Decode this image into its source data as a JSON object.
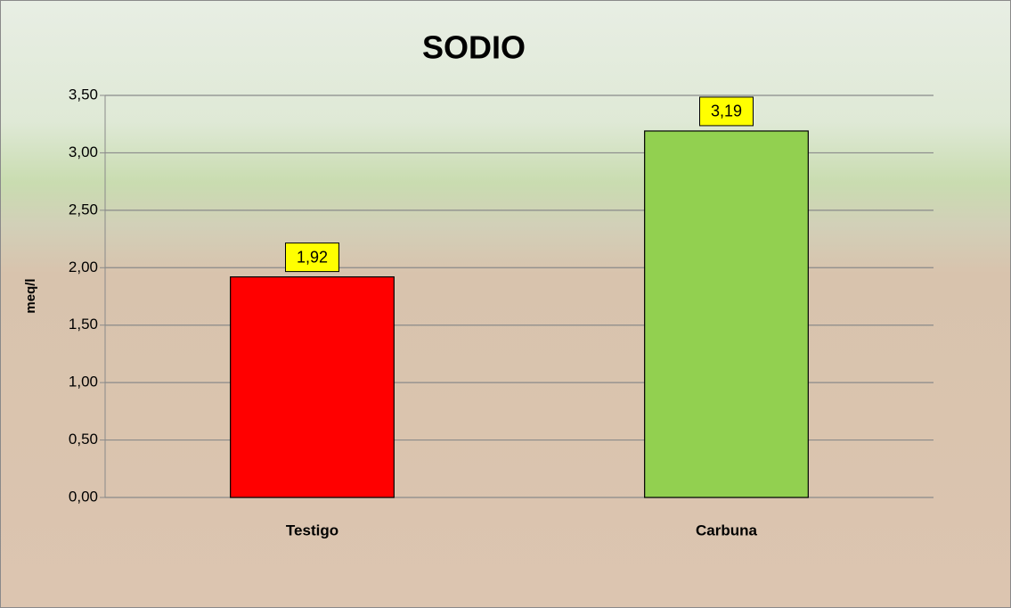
{
  "chart_data": {
    "type": "bar",
    "title": "SODIO",
    "y_label": "meq/l",
    "categories": [
      "Testigo",
      "Carbuna"
    ],
    "values": [
      1.92,
      3.19
    ],
    "value_labels": [
      "1,92",
      "3,19"
    ],
    "colors": [
      "#ff0000",
      "#92d050"
    ],
    "ylim": [
      0,
      3.5
    ],
    "yticks": [
      {
        "value": 0,
        "label": "0,00"
      },
      {
        "value": 0.5,
        "label": "0,50"
      },
      {
        "value": 1,
        "label": "1,00"
      },
      {
        "value": 1.5,
        "label": "1,50"
      },
      {
        "value": 2,
        "label": "2,00"
      },
      {
        "value": 2.5,
        "label": "2,50"
      },
      {
        "value": 3,
        "label": "3,00"
      },
      {
        "value": 3.5,
        "label": "3,50"
      }
    ],
    "grid": true
  }
}
